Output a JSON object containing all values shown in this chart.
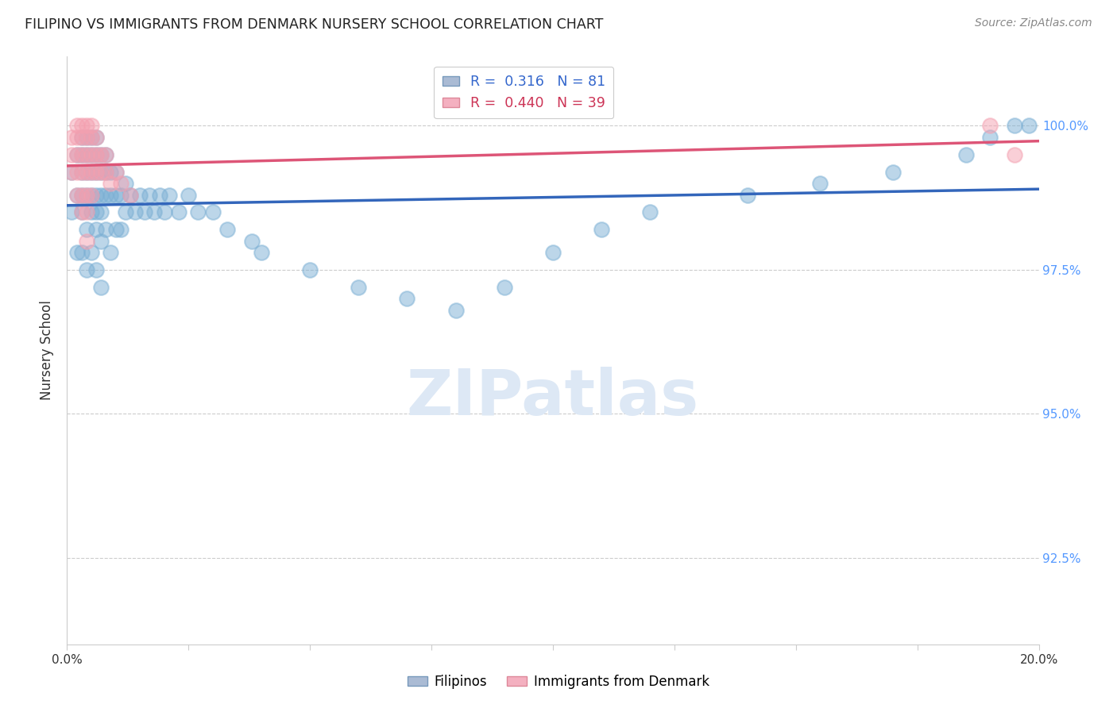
{
  "title": "FILIPINO VS IMMIGRANTS FROM DENMARK NURSERY SCHOOL CORRELATION CHART",
  "source": "Source: ZipAtlas.com",
  "ylabel": "Nursery School",
  "yticks": [
    92.5,
    95.0,
    97.5,
    100.0
  ],
  "ytick_labels": [
    "92.5%",
    "95.0%",
    "97.5%",
    "100.0%"
  ],
  "xlim": [
    0.0,
    0.2
  ],
  "ylim": [
    91.0,
    101.2
  ],
  "filipinos_R": 0.316,
  "filipinos_N": 81,
  "denmark_R": 0.44,
  "denmark_N": 39,
  "blue_color": "#7BAFD4",
  "pink_color": "#F4A0B0",
  "blue_line_color": "#3366BB",
  "pink_line_color": "#DD5577",
  "legend_label_blue": "Filipinos",
  "legend_label_pink": "Immigrants from Denmark",
  "watermark_color": "#dde8f5",
  "filipinos_x": [
    0.001,
    0.001,
    0.002,
    0.002,
    0.002,
    0.003,
    0.003,
    0.003,
    0.003,
    0.003,
    0.003,
    0.004,
    0.004,
    0.004,
    0.004,
    0.004,
    0.004,
    0.005,
    0.005,
    0.005,
    0.005,
    0.005,
    0.005,
    0.006,
    0.006,
    0.006,
    0.006,
    0.006,
    0.006,
    0.006,
    0.007,
    0.007,
    0.007,
    0.007,
    0.007,
    0.007,
    0.008,
    0.008,
    0.008,
    0.008,
    0.009,
    0.009,
    0.009,
    0.01,
    0.01,
    0.01,
    0.011,
    0.011,
    0.012,
    0.012,
    0.013,
    0.014,
    0.015,
    0.016,
    0.017,
    0.018,
    0.019,
    0.02,
    0.021,
    0.023,
    0.025,
    0.027,
    0.03,
    0.033,
    0.038,
    0.04,
    0.05,
    0.06,
    0.07,
    0.08,
    0.09,
    0.1,
    0.11,
    0.12,
    0.14,
    0.155,
    0.17,
    0.185,
    0.19,
    0.195,
    0.198
  ],
  "filipinos_y": [
    98.5,
    99.2,
    98.8,
    99.5,
    97.8,
    99.8,
    99.5,
    99.2,
    98.8,
    98.5,
    97.8,
    99.8,
    99.5,
    99.2,
    98.8,
    98.2,
    97.5,
    99.8,
    99.5,
    99.2,
    98.8,
    98.5,
    97.8,
    99.8,
    99.5,
    99.2,
    98.8,
    98.5,
    98.2,
    97.5,
    99.5,
    99.2,
    98.8,
    98.5,
    98.0,
    97.2,
    99.5,
    99.2,
    98.8,
    98.2,
    99.2,
    98.8,
    97.8,
    99.2,
    98.8,
    98.2,
    98.8,
    98.2,
    99.0,
    98.5,
    98.8,
    98.5,
    98.8,
    98.5,
    98.8,
    98.5,
    98.8,
    98.5,
    98.8,
    98.5,
    98.8,
    98.5,
    98.5,
    98.2,
    98.0,
    97.8,
    97.5,
    97.2,
    97.0,
    96.8,
    97.2,
    97.8,
    98.2,
    98.5,
    98.8,
    99.0,
    99.2,
    99.5,
    99.8,
    100.0,
    100.0
  ],
  "denmark_x": [
    0.001,
    0.001,
    0.001,
    0.002,
    0.002,
    0.002,
    0.002,
    0.002,
    0.003,
    0.003,
    0.003,
    0.003,
    0.003,
    0.003,
    0.004,
    0.004,
    0.004,
    0.004,
    0.004,
    0.004,
    0.004,
    0.005,
    0.005,
    0.005,
    0.005,
    0.005,
    0.006,
    0.006,
    0.006,
    0.007,
    0.007,
    0.008,
    0.008,
    0.009,
    0.01,
    0.011,
    0.013,
    0.19,
    0.195
  ],
  "denmark_y": [
    99.8,
    99.5,
    99.2,
    100.0,
    99.8,
    99.5,
    99.2,
    98.8,
    100.0,
    99.8,
    99.5,
    99.2,
    98.8,
    98.5,
    100.0,
    99.8,
    99.5,
    99.2,
    98.8,
    98.5,
    98.0,
    100.0,
    99.8,
    99.5,
    99.2,
    98.8,
    99.8,
    99.5,
    99.2,
    99.5,
    99.2,
    99.5,
    99.2,
    99.0,
    99.2,
    99.0,
    98.8,
    100.0,
    99.5
  ]
}
